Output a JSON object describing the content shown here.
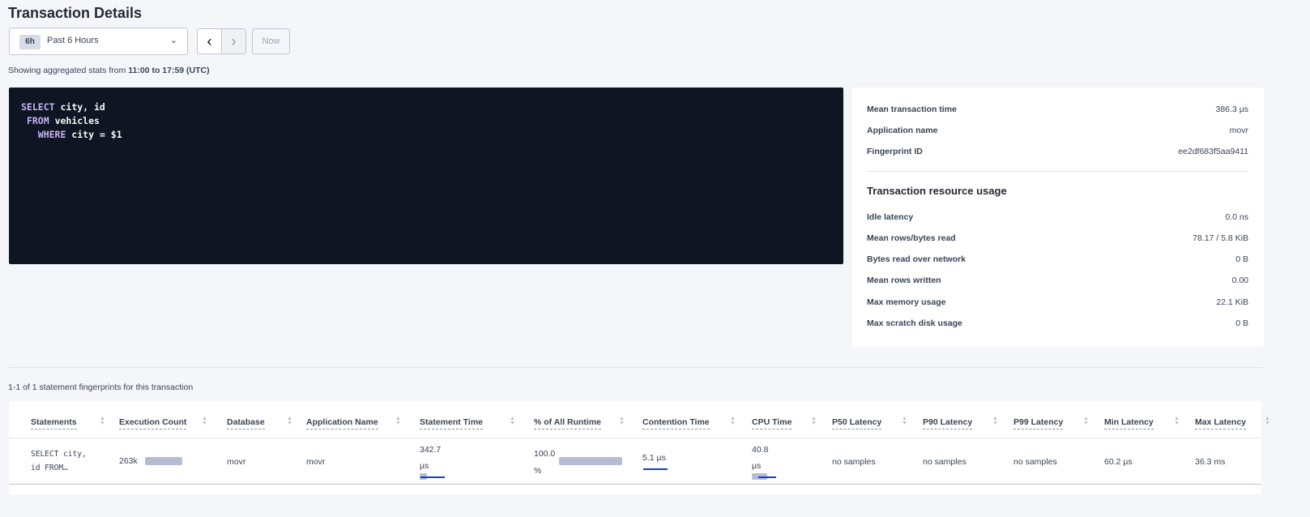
{
  "header": {
    "title": "Transaction Details"
  },
  "time_selector": {
    "badge": "6h",
    "label": "Past 6 Hours",
    "prev_icon": "chevron-left",
    "next_icon": "chevron-right",
    "now_label": "Now"
  },
  "info": {
    "prefix": "Showing aggregated stats from ",
    "range": "11:00 to 17:59 (UTC)"
  },
  "sql": {
    "lines": [
      {
        "kw": "SELECT",
        "rest": " city, id",
        "indent": ""
      },
      {
        "kw": "FROM",
        "rest": " vehicles",
        "indent": " "
      },
      {
        "kw": "WHERE",
        "rest": " city = $1",
        "indent": "   "
      }
    ]
  },
  "summary": {
    "rows": [
      {
        "label": "Mean transaction time",
        "value": "386.3 µs"
      },
      {
        "label": "Application name",
        "value": "movr"
      },
      {
        "label": "Fingerprint ID",
        "value": "ee2df683f5aa9411"
      }
    ],
    "resource_title": "Transaction resource usage",
    "resource_rows": [
      {
        "label": "Idle latency",
        "value": "0.0 ns"
      },
      {
        "label": "Mean rows/bytes read",
        "value": "78.17 / 5.8 KiB"
      },
      {
        "label": "Bytes read over network",
        "value": "0 B"
      },
      {
        "label": "Mean rows written",
        "value": "0.00"
      },
      {
        "label": "Max memory usage",
        "value": "22.1 KiB"
      },
      {
        "label": "Max scratch disk usage",
        "value": "0 B"
      }
    ]
  },
  "statements": {
    "count_text": "1-1 of 1 statement fingerprints for this transaction",
    "columns": [
      "Statements",
      "Execution Count",
      "Database",
      "Application Name",
      "Statement Time",
      "% of All Runtime",
      "Contention Time",
      "CPU Time",
      "P50 Latency",
      "P90 Latency",
      "P99 Latency",
      "Min Latency",
      "Max Latency"
    ],
    "rows": [
      {
        "statement": "SELECT city, id FROM…",
        "statement_l1": "SELECT city,",
        "statement_l2": "id FROM…",
        "execution_count": "263k",
        "database": "movr",
        "application_name": "movr",
        "statement_time_l1": "342.7",
        "statement_time_l2": "µs",
        "runtime_l1": "100.0",
        "runtime_l2": "%",
        "runtime_fraction": 1.0,
        "contention_time": "5.1 µs",
        "cpu_time_l1": "40.8",
        "cpu_time_l2": "µs",
        "p50": "no samples",
        "p90": "no samples",
        "p99": "no samples",
        "min_latency": "60.2 µs",
        "max_latency": "36.3 ms"
      }
    ]
  },
  "colors": {
    "code_bg": "#0f1522",
    "keyword": "#c8b4f8",
    "bar_gray": "#b6bdd2",
    "bar_blue": "#0d3fdc"
  }
}
